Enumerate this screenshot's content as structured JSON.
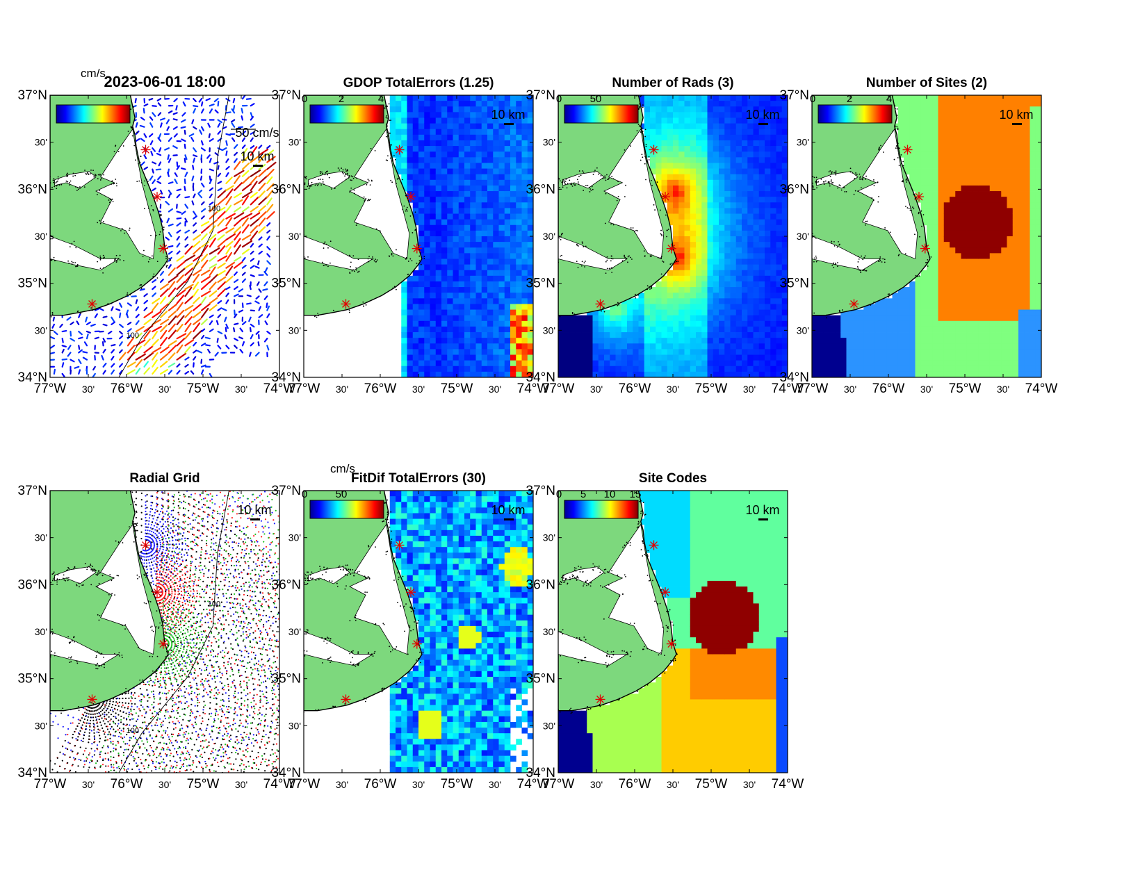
{
  "colors": {
    "land": "#7dd87d",
    "ocean": "#ffffff",
    "site_marker": "#e00000",
    "coast": "#000000"
  },
  "icons": {
    "site": "red-asterisk",
    "scale_bar": "black-bar"
  },
  "axes": {
    "lon_ticks": [
      "77°W",
      "30'",
      "76°W",
      "30'",
      "75°W",
      "30'",
      "74°W"
    ],
    "lat_ticks": [
      "37°N",
      "30'",
      "36°N",
      "30'",
      "35°N",
      "30'",
      "34°N"
    ],
    "lon_range": [
      -77,
      -74
    ],
    "lat_range": [
      34,
      37
    ]
  },
  "sites": [
    {
      "lon": -75.75,
      "lat": 36.42
    },
    {
      "lon": -75.6,
      "lat": 35.92
    },
    {
      "lon": -75.52,
      "lat": 35.37
    },
    {
      "lon": -76.45,
      "lat": 34.78
    }
  ],
  "panels": [
    {
      "key": "currents",
      "title": "2023-06-01 18:00",
      "unit": "cm/s",
      "cb_ticks": [
        "",
        "",
        ""
      ],
      "scale": "10 km",
      "vector_scale": "50 cm/s",
      "contour": "100",
      "colorbar": "jet",
      "row": 0,
      "col": 0
    },
    {
      "key": "gdop",
      "title": "GDOP TotalErrors (1.25)",
      "unit": "",
      "cb_ticks": [
        "0",
        "2",
        "4"
      ],
      "scale": "10 km",
      "contour": "1.25",
      "colorbar": "jet",
      "row": 0,
      "col": 1
    },
    {
      "key": "rads",
      "title": "Number of Rads (3)",
      "unit": "",
      "cb_ticks": [
        "0",
        "50",
        ""
      ],
      "scale": "10 km",
      "contour": "",
      "colorbar": "jet",
      "row": 0,
      "col": 2
    },
    {
      "key": "sites",
      "title": "Number of Sites (2)",
      "unit": "",
      "cb_ticks": [
        "0",
        "2",
        "4"
      ],
      "scale": "10 km",
      "contour": "2",
      "colorbar": "jet",
      "row": 0,
      "col": 3
    },
    {
      "key": "radial",
      "title": "Radial Grid",
      "unit": "",
      "cb_ticks": [],
      "scale": "10 km",
      "contour": "100",
      "colorbar": "",
      "row": 1,
      "col": 0
    },
    {
      "key": "fitdif",
      "title": "FitDif TotalErrors (30)",
      "unit": "cm/s",
      "cb_ticks": [
        "0",
        "50",
        ""
      ],
      "scale": "10 km",
      "contour": "30",
      "colorbar": "jet",
      "row": 1,
      "col": 1
    },
    {
      "key": "codes",
      "title": "Site Codes",
      "unit": "",
      "cb_ticks": [
        "0",
        "5",
        "10",
        "15"
      ],
      "scale": "10 km",
      "contour": "",
      "colorbar": "jet",
      "row": 1,
      "col": 2
    }
  ]
}
